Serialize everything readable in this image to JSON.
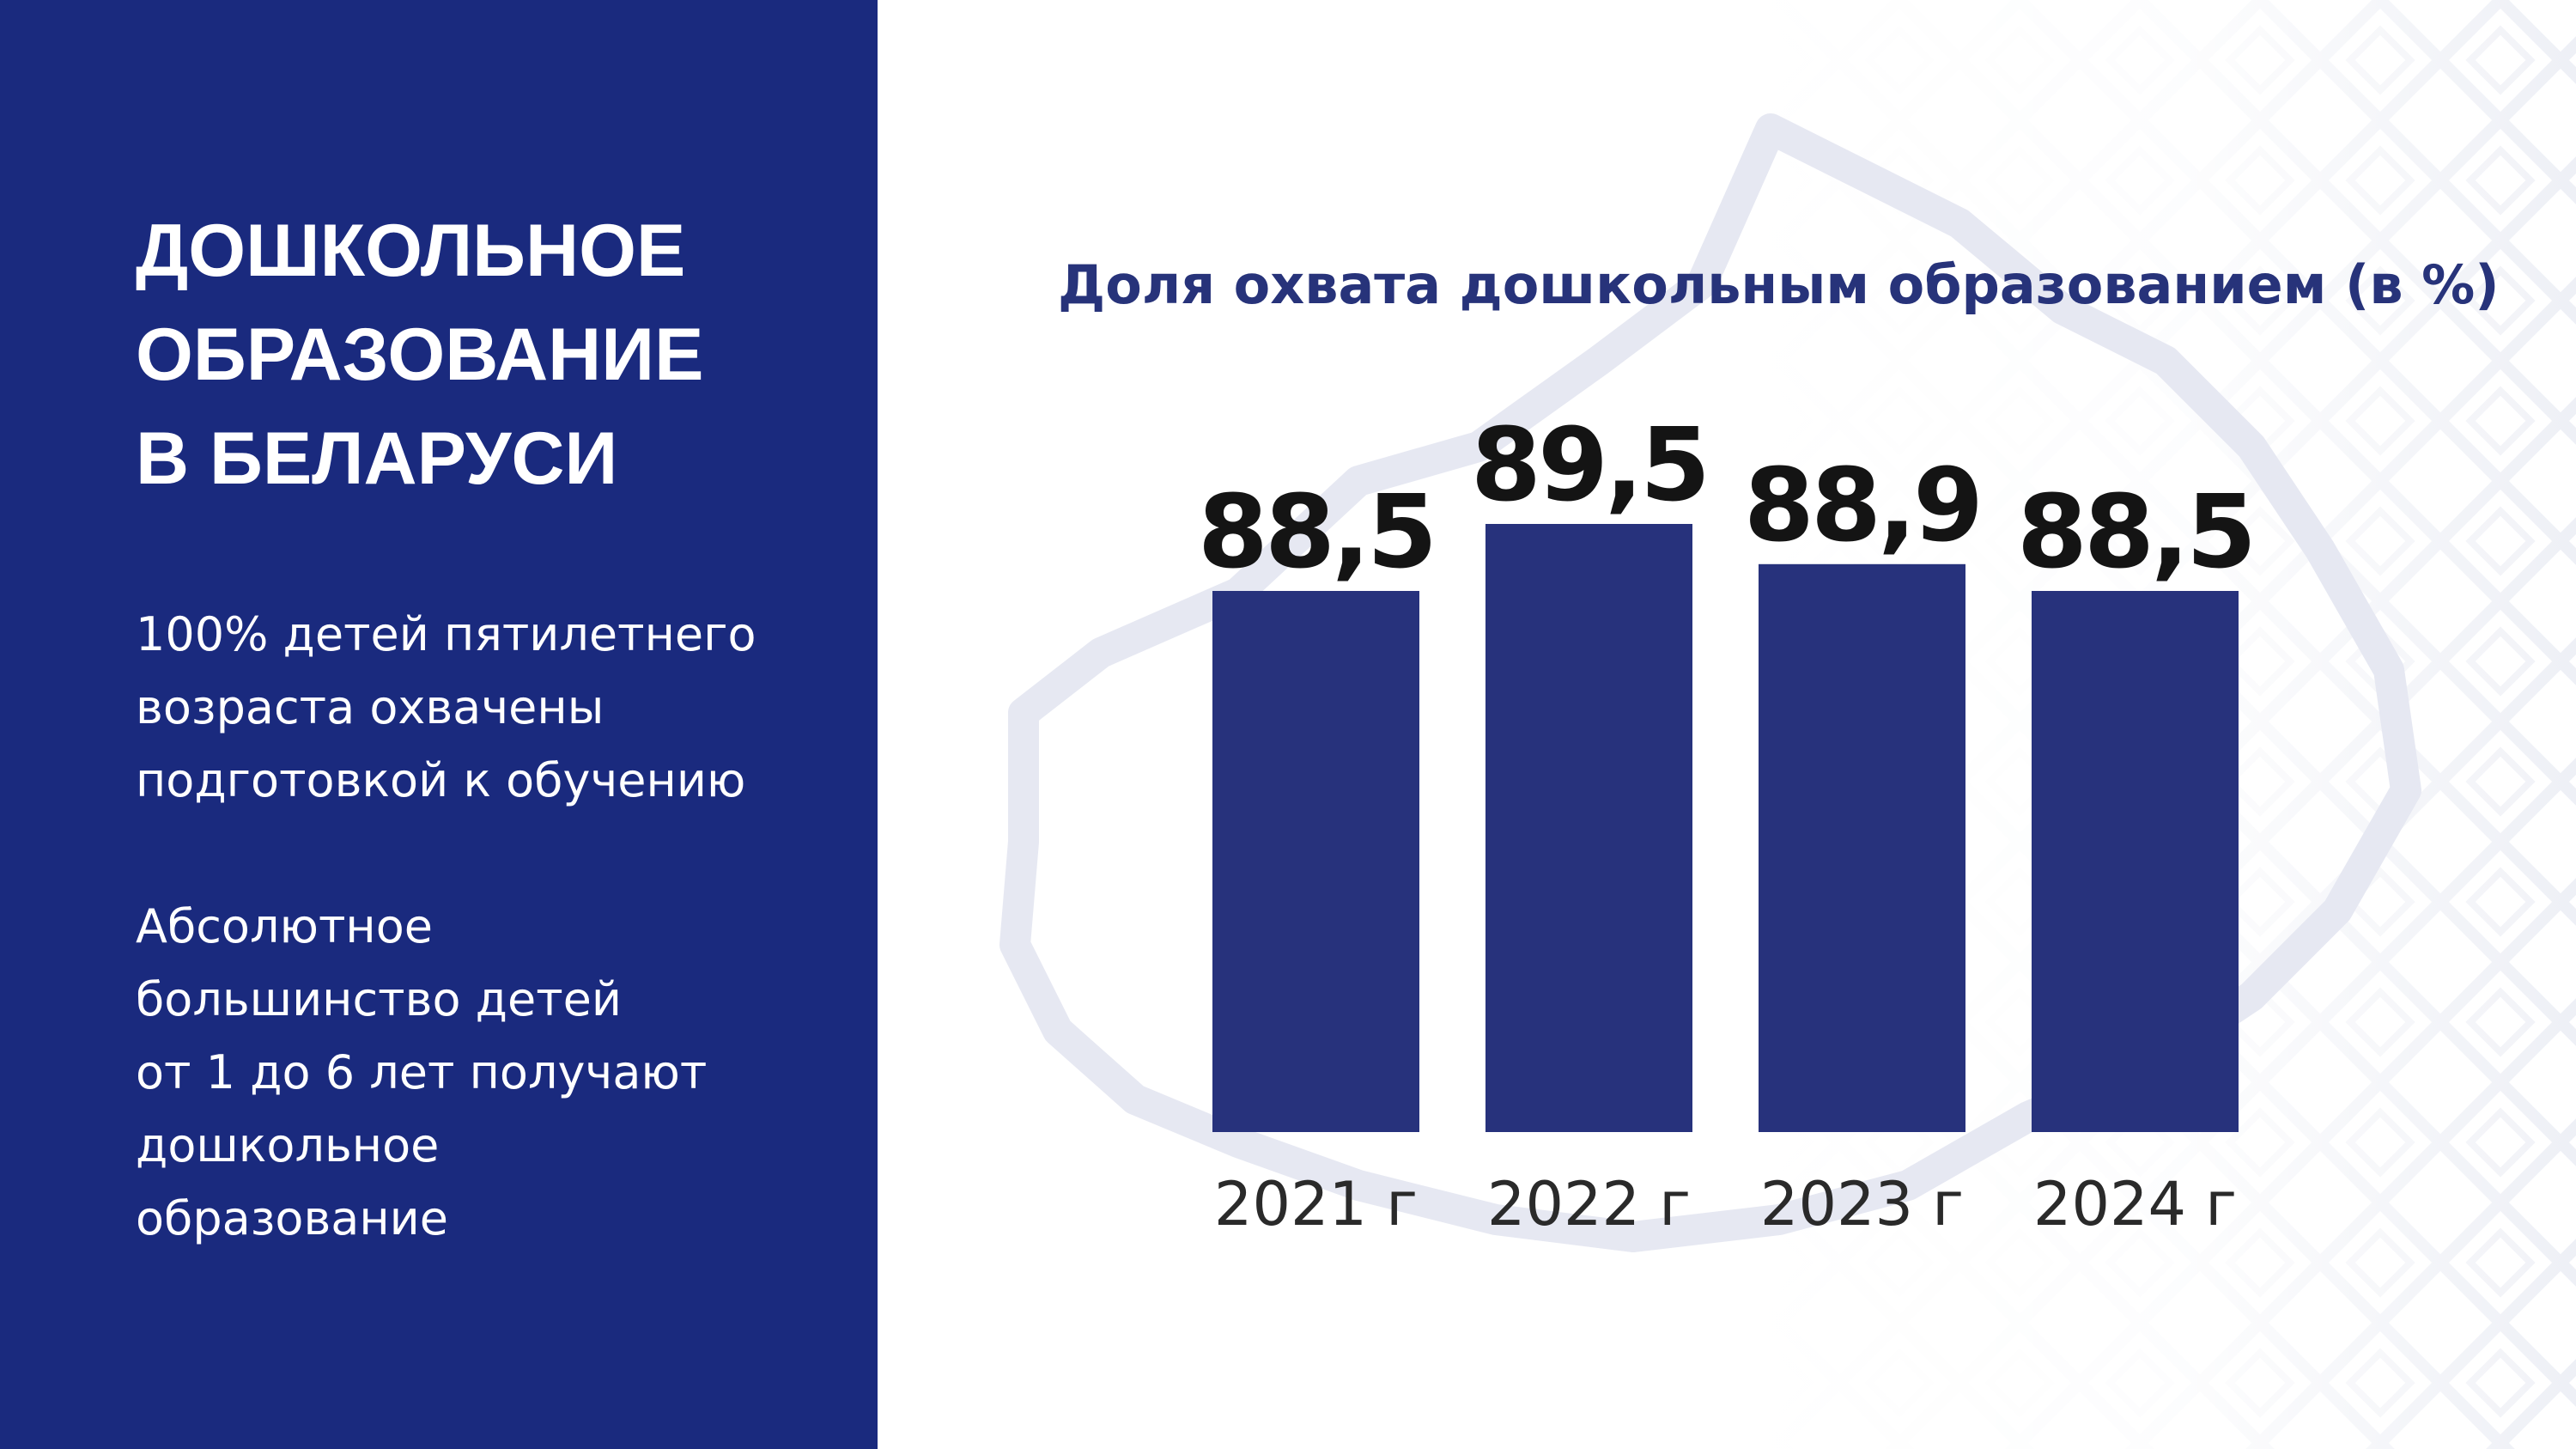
{
  "left_panel": {
    "heading_lines": [
      "ДОШКОЛЬНОЕ",
      "ОБРАЗОВАНИЕ",
      "В БЕЛАРУСИ"
    ],
    "paragraph_1_lines": [
      "100% детей пятилетнего",
      "возраста охвачены",
      "подготовкой к обучению"
    ],
    "paragraph_2_lines": [
      "Абсолютное",
      "большинство детей",
      "от 1 до 6 лет получают",
      "дошкольное",
      "образование"
    ]
  },
  "colors": {
    "panel_background": "#1a2a7e",
    "bar": "#27327c",
    "title": "#27337a"
  },
  "chart_data": {
    "type": "bar",
    "title": "Доля охвата дошкольным образованием (в %)",
    "categories": [
      "2021 г",
      "2022 г",
      "2023 г",
      "2024 г"
    ],
    "values": [
      88.5,
      89.5,
      88.9,
      88.5
    ],
    "value_labels": [
      "88,5",
      "89,5",
      "88,9",
      "88,5"
    ],
    "xlabel": "",
    "ylabel": "",
    "grid": false
  }
}
